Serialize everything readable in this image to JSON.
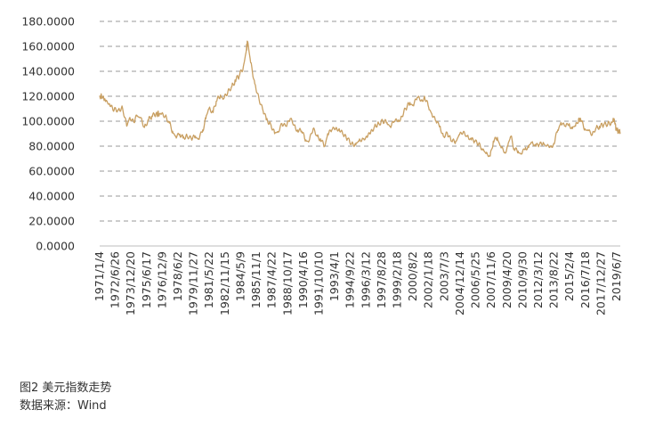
{
  "caption": {
    "title": "图2 美元指数走势",
    "source": "数据来源：Wind"
  },
  "chart_data": {
    "type": "line",
    "title": "",
    "xlabel": "",
    "ylabel": "",
    "ylim": [
      0,
      180
    ],
    "yticks": [
      "0.0000",
      "20.0000",
      "40.0000",
      "60.0000",
      "80.0000",
      "100.0000",
      "120.0000",
      "140.0000",
      "160.0000",
      "180.0000"
    ],
    "grid": true,
    "legend": "none",
    "color": "#c9a063",
    "x_tick_labels": [
      "1971/1/4",
      "1972/6/26",
      "1973/12/20",
      "1975/6/17",
      "1976/12/9",
      "1978/6/2",
      "1979/11/27",
      "1981/5/22",
      "1982/11/15",
      "1984/5/9",
      "1985/11/1",
      "1987/4/22",
      "1988/10/17",
      "1990/4/16",
      "1991/10/10",
      "1993/4/1",
      "1994/9/22",
      "1996/3/12",
      "1997/8/28",
      "1999/2/18",
      "2000/8/2",
      "2002/1/18",
      "2003/7/3",
      "2004/12/14",
      "2006/5/25",
      "2007/11/6",
      "2009/4/20",
      "2010/9/30",
      "2012/3/12",
      "2013/8/22",
      "2015/2/4",
      "2016/7/18",
      "2017/12/27",
      "2019/6/7"
    ],
    "series": [
      {
        "values": [
          [
            1971.0,
            120.5
          ],
          [
            1971.5,
            118.0
          ],
          [
            1972.0,
            112.0
          ],
          [
            1972.4,
            109.5
          ],
          [
            1972.8,
            109.0
          ],
          [
            1973.2,
            110.5
          ],
          [
            1973.6,
            96.0
          ],
          [
            1973.9,
            103.0
          ],
          [
            1974.3,
            99.0
          ],
          [
            1974.6,
            104.0
          ],
          [
            1974.9,
            103.0
          ],
          [
            1975.3,
            95.0
          ],
          [
            1975.7,
            101.0
          ],
          [
            1976.0,
            104.0
          ],
          [
            1976.4,
            106.0
          ],
          [
            1976.9,
            105.5
          ],
          [
            1977.3,
            104.0
          ],
          [
            1977.7,
            98.5
          ],
          [
            1978.0,
            92.0
          ],
          [
            1978.3,
            88.0
          ],
          [
            1978.7,
            89.5
          ],
          [
            1979.0,
            86.5
          ],
          [
            1979.4,
            88.0
          ],
          [
            1979.8,
            86.0
          ],
          [
            1980.2,
            88.0
          ],
          [
            1980.5,
            86.0
          ],
          [
            1980.9,
            93.0
          ],
          [
            1981.2,
            102.0
          ],
          [
            1981.5,
            110.0
          ],
          [
            1981.9,
            107.0
          ],
          [
            1982.2,
            116.0
          ],
          [
            1982.6,
            121.0
          ],
          [
            1982.9,
            118.0
          ],
          [
            1983.3,
            123.0
          ],
          [
            1983.7,
            128.0
          ],
          [
            1984.0,
            133.0
          ],
          [
            1984.4,
            136.0
          ],
          [
            1984.8,
            144.0
          ],
          [
            1985.1,
            158.0
          ],
          [
            1985.2,
            164.0
          ],
          [
            1985.5,
            147.0
          ],
          [
            1985.9,
            130.0
          ],
          [
            1986.3,
            118.0
          ],
          [
            1986.7,
            108.0
          ],
          [
            1987.0,
            101.0
          ],
          [
            1987.4,
            98.0
          ],
          [
            1987.8,
            90.0
          ],
          [
            1988.1,
            91.0
          ],
          [
            1988.5,
            98.0
          ],
          [
            1988.9,
            96.0
          ],
          [
            1989.3,
            102.0
          ],
          [
            1989.7,
            97.0
          ],
          [
            1990.0,
            93.0
          ],
          [
            1990.4,
            92.0
          ],
          [
            1990.8,
            85.0
          ],
          [
            1991.1,
            84.0
          ],
          [
            1991.5,
            94.0
          ],
          [
            1991.9,
            88.0
          ],
          [
            1992.2,
            86.0
          ],
          [
            1992.6,
            80.0
          ],
          [
            1992.9,
            90.0
          ],
          [
            1993.3,
            93.0
          ],
          [
            1993.7,
            95.0
          ],
          [
            1994.0,
            94.0
          ],
          [
            1994.4,
            89.0
          ],
          [
            1994.8,
            86.0
          ],
          [
            1995.2,
            82.0
          ],
          [
            1995.6,
            81.0
          ],
          [
            1995.9,
            84.0
          ],
          [
            1996.3,
            86.0
          ],
          [
            1996.7,
            87.0
          ],
          [
            1997.0,
            90.0
          ],
          [
            1997.4,
            96.0
          ],
          [
            1997.8,
            98.0
          ],
          [
            1998.2,
            100.0
          ],
          [
            1998.6,
            99.0
          ],
          [
            1998.9,
            96.0
          ],
          [
            1999.3,
            100.0
          ],
          [
            1999.7,
            101.0
          ],
          [
            2000.0,
            104.0
          ],
          [
            2000.4,
            110.0
          ],
          [
            2000.8,
            115.0
          ],
          [
            2001.1,
            113.0
          ],
          [
            2001.5,
            119.0
          ],
          [
            2001.9,
            117.0
          ],
          [
            2002.2,
            120.0
          ],
          [
            2002.6,
            111.0
          ],
          [
            2002.9,
            106.0
          ],
          [
            2003.3,
            100.0
          ],
          [
            2003.7,
            96.0
          ],
          [
            2004.0,
            88.0
          ],
          [
            2004.4,
            90.0
          ],
          [
            2004.8,
            84.0
          ],
          [
            2005.2,
            84.0
          ],
          [
            2005.5,
            89.0
          ],
          [
            2005.9,
            91.0
          ],
          [
            2006.3,
            88.0
          ],
          [
            2006.7,
            85.0
          ],
          [
            2007.0,
            84.0
          ],
          [
            2007.4,
            82.0
          ],
          [
            2007.8,
            77.0
          ],
          [
            2008.1,
            74.0
          ],
          [
            2008.5,
            72.0
          ],
          [
            2008.8,
            84.0
          ],
          [
            2009.2,
            87.0
          ],
          [
            2009.5,
            80.0
          ],
          [
            2009.9,
            75.0
          ],
          [
            2010.2,
            80.0
          ],
          [
            2010.5,
            88.0
          ],
          [
            2010.8,
            78.0
          ],
          [
            2011.2,
            76.0
          ],
          [
            2011.5,
            74.0
          ],
          [
            2011.9,
            79.0
          ],
          [
            2012.2,
            79.0
          ],
          [
            2012.5,
            83.0
          ],
          [
            2012.9,
            80.0
          ],
          [
            2013.2,
            81.0
          ],
          [
            2013.6,
            83.0
          ],
          [
            2013.9,
            80.0
          ],
          [
            2014.3,
            80.0
          ],
          [
            2014.6,
            82.0
          ],
          [
            2015.0,
            93.0
          ],
          [
            2015.3,
            99.0
          ],
          [
            2015.7,
            96.0
          ],
          [
            2016.1,
            98.0
          ],
          [
            2016.4,
            94.0
          ],
          [
            2016.7,
            96.0
          ],
          [
            2017.0,
            102.0
          ],
          [
            2017.2,
            101.0
          ],
          [
            2017.6,
            94.0
          ],
          [
            2017.9,
            93.0
          ],
          [
            2018.3,
            89.0
          ],
          [
            2018.7,
            95.0
          ],
          [
            2019.0,
            96.0
          ],
          [
            2019.4,
            97.0
          ],
          [
            2019.8,
            98.0
          ],
          [
            2020.2,
            99.0
          ],
          [
            2020.4,
            102.0
          ],
          [
            2020.6,
            94.0
          ],
          [
            2020.8,
            92.0
          ],
          [
            2021.0,
            91.0
          ]
        ]
      }
    ]
  }
}
